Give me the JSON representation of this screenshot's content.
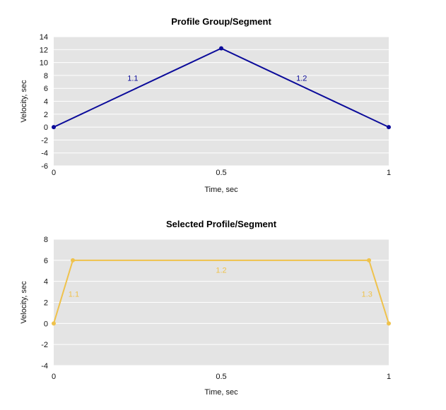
{
  "chart_data": [
    {
      "type": "line",
      "title": "Profile Group/Segment",
      "xlabel": "Time, sec",
      "ylabel": "Velocity, sec",
      "xlim": [
        0,
        1
      ],
      "ylim": [
        -6,
        14
      ],
      "xticks": [
        "0",
        "0.5",
        "1"
      ],
      "xtick_values": [
        0,
        0.5,
        1
      ],
      "yticks": [
        "14",
        "12",
        "10",
        "8",
        "6",
        "4",
        "2",
        "0",
        "-2",
        "-4",
        "-6"
      ],
      "ytick_values": [
        14,
        12,
        10,
        8,
        6,
        4,
        2,
        0,
        -2,
        -4,
        -6
      ],
      "grid": true,
      "color": "#0b0b9a",
      "points": [
        {
          "x": 0,
          "y": 0
        },
        {
          "x": 0.5,
          "y": 12.2
        },
        {
          "x": 1,
          "y": 0
        }
      ],
      "annotations": [
        {
          "text": "1.1",
          "x": 0.236,
          "y": 7.6
        },
        {
          "text": "1.2",
          "x": 0.74,
          "y": 7.6
        }
      ]
    },
    {
      "type": "line",
      "title": "Selected Profile/Segment",
      "xlabel": "Time, sec",
      "ylabel": "Velocity, sec",
      "xlim": [
        0,
        1
      ],
      "ylim": [
        -4,
        8
      ],
      "xticks": [
        "0",
        "0.5",
        "1"
      ],
      "xtick_values": [
        0,
        0.5,
        1
      ],
      "yticks": [
        "8",
        "6",
        "4",
        "2",
        "0",
        "-2",
        "-4"
      ],
      "ytick_values": [
        8,
        6,
        4,
        2,
        0,
        -2,
        -4
      ],
      "grid": true,
      "color": "#efc24c",
      "points": [
        {
          "x": 0,
          "y": 0
        },
        {
          "x": 0.057,
          "y": 6
        },
        {
          "x": 0.941,
          "y": 6
        },
        {
          "x": 1,
          "y": 0
        }
      ],
      "annotations": [
        {
          "text": "1.1",
          "x": 0.06,
          "y": 2.8
        },
        {
          "text": "1.2",
          "x": 0.5,
          "y": 5.1
        },
        {
          "text": "1.3",
          "x": 0.935,
          "y": 2.8
        }
      ]
    }
  ]
}
